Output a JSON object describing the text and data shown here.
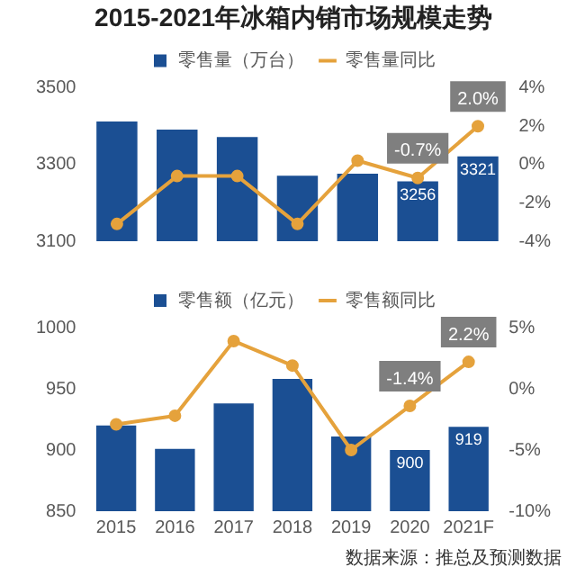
{
  "chart_data": [
    {
      "type": "bar",
      "title": "2015-2021年冰箱内销市场规模走势",
      "categories": [
        null,
        null,
        null,
        null,
        null,
        null,
        null
      ],
      "series": [
        {
          "name": "零售量（万台）",
          "color": "#1b4f93",
          "values": [
            3412,
            3391,
            3372,
            3271,
            3276,
            3256,
            3321
          ],
          "value_labels": [
            null,
            null,
            null,
            null,
            null,
            "3256",
            "3321"
          ]
        },
        {
          "name": "零售量同比",
          "type": "line",
          "axis": "y2",
          "color": "#e5a23c",
          "values": [
            -3.1,
            -0.6,
            -0.6,
            -3.1,
            0.2,
            -0.7,
            2.0
          ],
          "value_labels": [
            null,
            null,
            null,
            null,
            null,
            "-0.7%",
            "2.0%"
          ]
        }
      ],
      "ylim": [
        3100,
        3500
      ],
      "yticks": [
        3100,
        3300,
        3500
      ],
      "y2lim": [
        -4,
        4
      ],
      "y2ticks": [
        {
          "value": -4,
          "label": "-4%"
        },
        {
          "value": -2,
          "label": "-2%"
        },
        {
          "value": 0,
          "label": "0%"
        },
        {
          "value": 2,
          "label": "2%"
        },
        {
          "value": 4,
          "label": "4%"
        }
      ],
      "legend": "top",
      "marker": "circle",
      "grid": false
    },
    {
      "type": "bar",
      "categories": [
        "2015",
        "2016",
        "2017",
        "2018",
        "2019",
        "2020",
        "2021F"
      ],
      "series": [
        {
          "name": "零售额（亿元）",
          "color": "#1b4f93",
          "values": [
            920,
            901,
            938,
            958,
            911,
            900,
            919
          ],
          "value_labels": [
            null,
            null,
            null,
            null,
            null,
            "900",
            "919"
          ]
        },
        {
          "name": "零售额同比",
          "type": "line",
          "axis": "y2",
          "color": "#e5a23c",
          "values": [
            -2.9,
            -2.2,
            3.9,
            1.9,
            -5.0,
            -1.4,
            2.2
          ],
          "value_labels": [
            null,
            null,
            null,
            null,
            null,
            "-1.4%",
            "2.2%"
          ]
        }
      ],
      "ylim": [
        850,
        1000
      ],
      "yticks": [
        850,
        900,
        950,
        1000
      ],
      "y2lim": [
        -10,
        5
      ],
      "y2ticks": [
        {
          "value": -10,
          "label": "-10%"
        },
        {
          "value": -5,
          "label": "-5%"
        },
        {
          "value": 0,
          "label": "0%"
        },
        {
          "value": 5,
          "label": "5%"
        }
      ],
      "legend": "top",
      "marker": "circle",
      "grid": false,
      "annotations": [
        "数据来源：推总及预测数据"
      ]
    }
  ]
}
